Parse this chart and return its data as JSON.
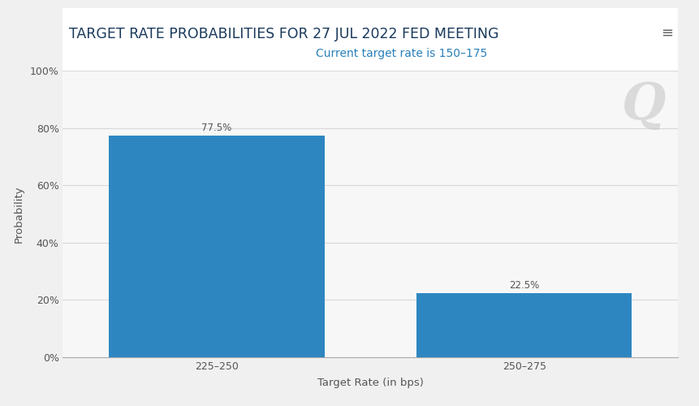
{
  "title": "TARGET RATE PROBABILITIES FOR 27 JUL 2022 FED MEETING",
  "subtitle": "Current target rate is 150–175",
  "subtitle_color": "#2980b9",
  "title_color": "#1a3a5c",
  "categories": [
    "225–250",
    "250–275"
  ],
  "values": [
    77.5,
    22.5
  ],
  "bar_color": "#2e86c1",
  "xlabel": "Target Rate (in bps)",
  "ylabel": "Probability",
  "ylim": [
    0,
    100
  ],
  "yticks": [
    0,
    20,
    40,
    60,
    80,
    100
  ],
  "ytick_labels": [
    "0%",
    "20%",
    "40%",
    "60%",
    "80%",
    "100%"
  ],
  "background_color": "#f0f0f0",
  "plot_bg_color": "#f7f7f7",
  "title_area_color": "#ffffff",
  "grid_color": "#d8d8d8",
  "title_fontsize": 12.5,
  "subtitle_fontsize": 10,
  "xlabel_fontsize": 9.5,
  "ylabel_fontsize": 9.5,
  "tick_fontsize": 9,
  "label_fontsize": 8.5,
  "bar_width": 0.35,
  "axis_color": "#aaaaaa",
  "text_color": "#555555"
}
